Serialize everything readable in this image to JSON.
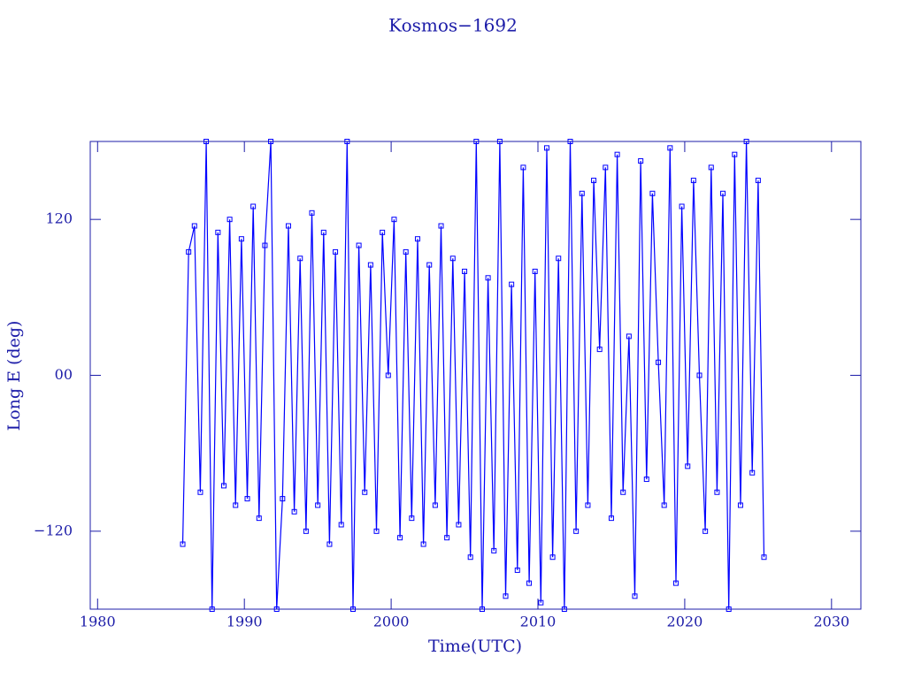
{
  "chart_data": {
    "type": "line",
    "title": "Kosmos−1692",
    "x_label": "Time(UTC)",
    "y_label": "Long E (deg)",
    "color": "#0000ff",
    "xlim": [
      1979.5,
      2032
    ],
    "xticks": [
      1980,
      1990,
      2000,
      2010,
      2020,
      2030
    ],
    "ylim": [
      -180,
      180
    ],
    "yticks": [
      {
        "value": -120,
        "label": "−120"
      },
      {
        "value": 0,
        "label": "00"
      },
      120
    ],
    "x": [
      1985.8,
      1986.2,
      1986.6,
      1987.0,
      1987.4,
      1987.8,
      1988.2,
      1988.6,
      1989.0,
      1989.4,
      1989.8,
      1990.2,
      1990.6,
      1991.0,
      1991.4,
      1991.8,
      1992.2,
      1992.6,
      1993.0,
      1993.4,
      1993.8,
      1994.2,
      1994.6,
      1995.0,
      1995.4,
      1995.8,
      1996.2,
      1996.6,
      1997.0,
      1997.4,
      1997.8,
      1998.2,
      1998.6,
      1999.0,
      1999.4,
      1999.8,
      2000.2,
      2000.6,
      2001.0,
      2001.4,
      2001.8,
      2002.2,
      2002.6,
      2003.0,
      2003.4,
      2003.8,
      2004.2,
      2004.6,
      2005.0,
      2005.4,
      2005.8,
      2006.2,
      2006.6,
      2007.0,
      2007.4,
      2007.8,
      2008.2,
      2008.6,
      2009.0,
      2009.4,
      2009.8,
      2010.2,
      2010.6,
      2011.0,
      2011.4,
      2011.8,
      2012.2,
      2012.6,
      2013.0,
      2013.4,
      2013.8,
      2014.2,
      2014.6,
      2015.0,
      2015.4,
      2015.8,
      2016.2,
      2016.6,
      2017.0,
      2017.4,
      2017.8,
      2018.2,
      2018.6,
      2019.0,
      2019.4,
      2019.8,
      2020.2,
      2020.6,
      2021.0,
      2021.4,
      2021.8,
      2022.2,
      2022.6,
      2023.0,
      2023.4,
      2023.8,
      2024.2,
      2024.6,
      2025.0,
      2025.4
    ],
    "values": [
      -130,
      95,
      115,
      -90,
      180,
      -180,
      110,
      -85,
      120,
      -100,
      105,
      -95,
      130,
      -110,
      100,
      180,
      -180,
      -95,
      115,
      -105,
      90,
      -120,
      125,
      -100,
      110,
      -130,
      95,
      -115,
      180,
      -180,
      100,
      -90,
      85,
      -120,
      110,
      0,
      120,
      -125,
      95,
      -110,
      105,
      -130,
      85,
      -100,
      115,
      -125,
      90,
      -115,
      80,
      -140,
      180,
      -180,
      75,
      -135,
      180,
      -170,
      70,
      -150,
      160,
      -160,
      80,
      -175,
      175,
      -140,
      90,
      -180,
      180,
      -120,
      140,
      -100,
      150,
      20,
      160,
      -110,
      170,
      -90,
      30,
      -170,
      165,
      -80,
      140,
      10,
      -100,
      175,
      -160,
      130,
      -70,
      150,
      0,
      -120,
      160,
      -90,
      140,
      -180,
      170,
      -100,
      180,
      -75,
      150,
      -140
    ]
  }
}
